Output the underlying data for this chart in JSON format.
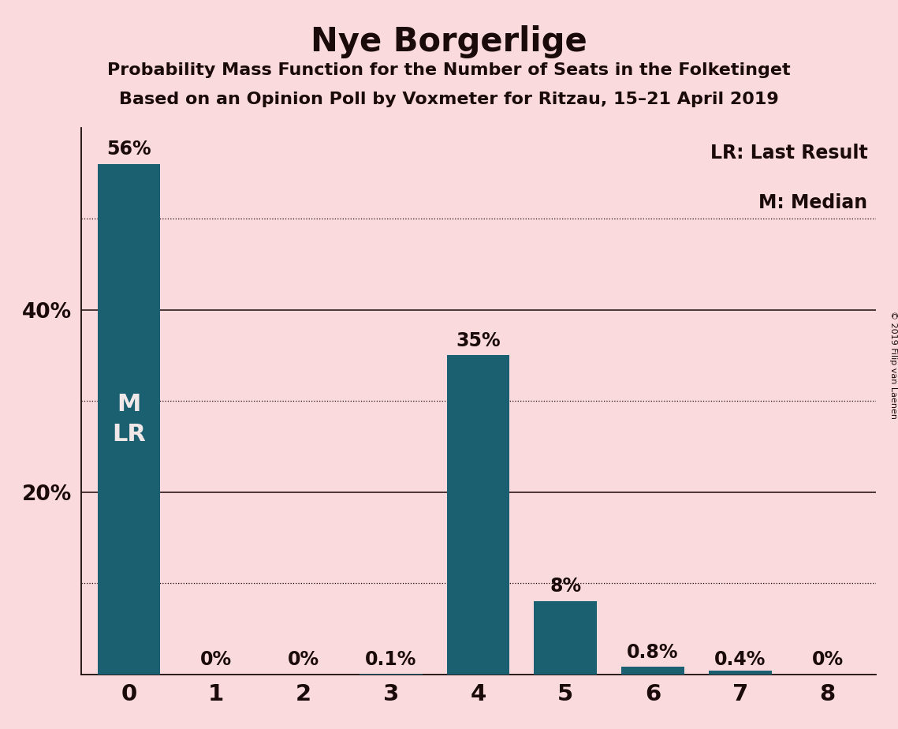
{
  "title": "Nye Borgerlige",
  "subtitle1": "Probability Mass Function for the Number of Seats in the Folketinget",
  "subtitle2": "Based on an Opinion Poll by Voxmeter for Ritzau, 15–21 April 2019",
  "categories": [
    0,
    1,
    2,
    3,
    4,
    5,
    6,
    7,
    8
  ],
  "values": [
    0.56,
    0.0,
    0.0,
    0.001,
    0.35,
    0.08,
    0.008,
    0.004,
    0.0
  ],
  "bar_labels": [
    "56%",
    "0%",
    "0%",
    "0.1%",
    "35%",
    "8%",
    "0.8%",
    "0.4%",
    "0%"
  ],
  "bar_color": "#1a6070",
  "background_color": "#fadadd",
  "text_color": "#1a0a0a",
  "white_text": "#f0e8e8",
  "legend_lr_text": "LR: Last Result",
  "legend_m_text": "M: Median",
  "copyright_text": "© 2019 Filip van Laenen",
  "ylim": [
    0,
    0.6
  ],
  "solid_gridlines": [
    0.2,
    0.4
  ],
  "dotted_gridlines": [
    0.1,
    0.3,
    0.5
  ],
  "title_fontsize": 30,
  "subtitle_fontsize": 16,
  "bar_label_fontsize": 17,
  "ytick_fontsize": 19,
  "xtick_fontsize": 21,
  "bar_width": 0.72,
  "m_lr_fontsize": 22
}
